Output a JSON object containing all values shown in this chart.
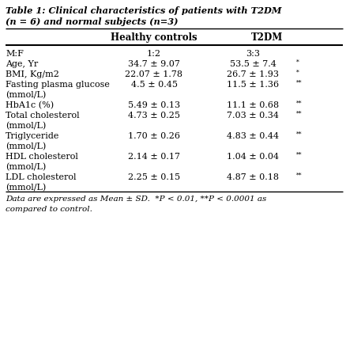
{
  "title_line1": "Table 1: Clinical characteristics of patients with T2DM",
  "title_line2": "(n = 6) and normal subjects (n=3)",
  "col_headers": [
    "",
    "Healthy controls",
    "T2DM"
  ],
  "rows": [
    [
      "M:F",
      "1:2",
      "3:3",
      ""
    ],
    [
      "Age, Yr",
      "34.7 ± 9.07",
      "53.5 ± 7.4",
      "*"
    ],
    [
      "BMI, Kg/m2",
      "22.07 ± 1.78",
      "26.7 ± 1.93",
      "*"
    ],
    [
      "Fasting plasma glucose",
      "4.5 ± 0.45",
      "11.5 ± 1.36",
      "**"
    ],
    [
      "(mmol/L)",
      "",
      "",
      ""
    ],
    [
      "HbA1c (%)",
      "5.49 ± 0.13",
      "11.1 ± 0.68",
      "**"
    ],
    [
      "Total cholesterol",
      "4.73 ± 0.25",
      "7.03 ± 0.34",
      "**"
    ],
    [
      "(mmol/L)",
      "",
      "",
      ""
    ],
    [
      "Triglyceride",
      "1.70 ± 0.26",
      "4.83 ± 0.44",
      "**"
    ],
    [
      "(mmol/L)",
      "",
      "",
      ""
    ],
    [
      "HDL cholesterol",
      "2.14 ± 0.17",
      "1.04 ± 0.04",
      "**"
    ],
    [
      "(mmol/L)",
      "",
      "",
      ""
    ],
    [
      "LDL cholesterol",
      "2.25 ± 0.15",
      "4.87 ± 0.18",
      "**"
    ],
    [
      "(mmol/L)",
      "",
      "",
      ""
    ]
  ],
  "footer_line1": "Data are expressed as Mean ± SD.  *P < 0.01, **P < 0.0001 as",
  "footer_line2": "compared to control.",
  "bg_color": "#ffffff",
  "text_color": "#000000",
  "line_color": "#000000",
  "title_fontsize": 8.2,
  "header_fontsize": 8.5,
  "body_fontsize": 8.0,
  "footer_fontsize": 7.5,
  "fig_width": 4.39,
  "fig_height": 4.46,
  "dpi": 100
}
